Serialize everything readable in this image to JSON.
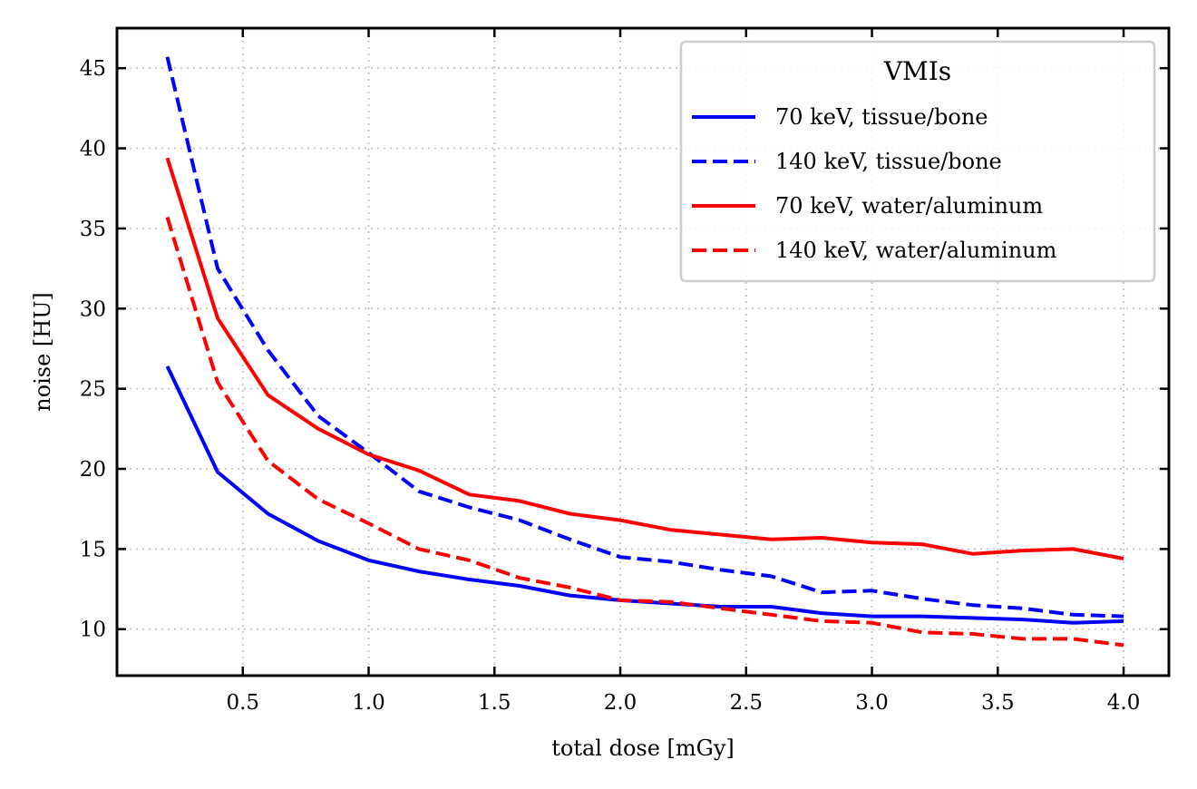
{
  "chart_data": {
    "type": "line",
    "xlabel": "total dose [mGy]",
    "ylabel": "noise [HU]",
    "xlim": [
      0.0,
      4.18
    ],
    "ylim": [
      7.1,
      47.5
    ],
    "xticks": [
      0.5,
      1.0,
      1.5,
      2.0,
      2.5,
      3.0,
      3.5,
      4.0
    ],
    "xtick_labels": [
      "0.5",
      "1.0",
      "1.5",
      "2.0",
      "2.5",
      "3.0",
      "3.5",
      "4.0"
    ],
    "yticks": [
      10,
      15,
      20,
      25,
      30,
      35,
      40,
      45
    ],
    "ytick_labels": [
      "10",
      "15",
      "20",
      "25",
      "30",
      "35",
      "40",
      "45"
    ],
    "grid": true,
    "legend": {
      "title": "VMIs",
      "placement": "top-right"
    },
    "x": [
      0.2,
      0.4,
      0.6,
      0.8,
      1.0,
      1.2,
      1.4,
      1.6,
      1.8,
      2.0,
      2.2,
      2.4,
      2.6,
      2.8,
      3.0,
      3.2,
      3.4,
      3.6,
      3.8,
      4.0
    ],
    "series": [
      {
        "name": "70 keV, tissue/bone",
        "color": "#0000ff",
        "style": "solid",
        "values": [
          26.4,
          19.8,
          17.2,
          15.5,
          14.3,
          13.6,
          13.1,
          12.7,
          12.1,
          11.8,
          11.6,
          11.4,
          11.4,
          11.0,
          10.8,
          10.8,
          10.7,
          10.6,
          10.4,
          10.5
        ]
      },
      {
        "name": "140 keV, tissue/bone",
        "color": "#0000ff",
        "style": "dashed",
        "values": [
          45.7,
          32.5,
          27.4,
          23.3,
          21.0,
          18.6,
          17.6,
          16.8,
          15.6,
          14.5,
          14.2,
          13.7,
          13.3,
          12.3,
          12.4,
          11.9,
          11.5,
          11.3,
          10.9,
          10.8
        ]
      },
      {
        "name": "70 keV, water/aluminum",
        "color": "#ff0000",
        "style": "solid",
        "values": [
          39.4,
          29.4,
          24.6,
          22.5,
          20.9,
          19.9,
          18.4,
          18.0,
          17.2,
          16.8,
          16.2,
          15.9,
          15.6,
          15.7,
          15.4,
          15.3,
          14.7,
          14.9,
          15.0,
          14.4
        ]
      },
      {
        "name": "140 keV, water/aluminum",
        "color": "#ff0000",
        "style": "dashed",
        "values": [
          35.7,
          25.4,
          20.5,
          18.1,
          16.6,
          15.0,
          14.3,
          13.2,
          12.6,
          11.8,
          11.7,
          11.3,
          10.9,
          10.5,
          10.4,
          9.8,
          9.7,
          9.4,
          9.4,
          9.0
        ]
      }
    ]
  }
}
